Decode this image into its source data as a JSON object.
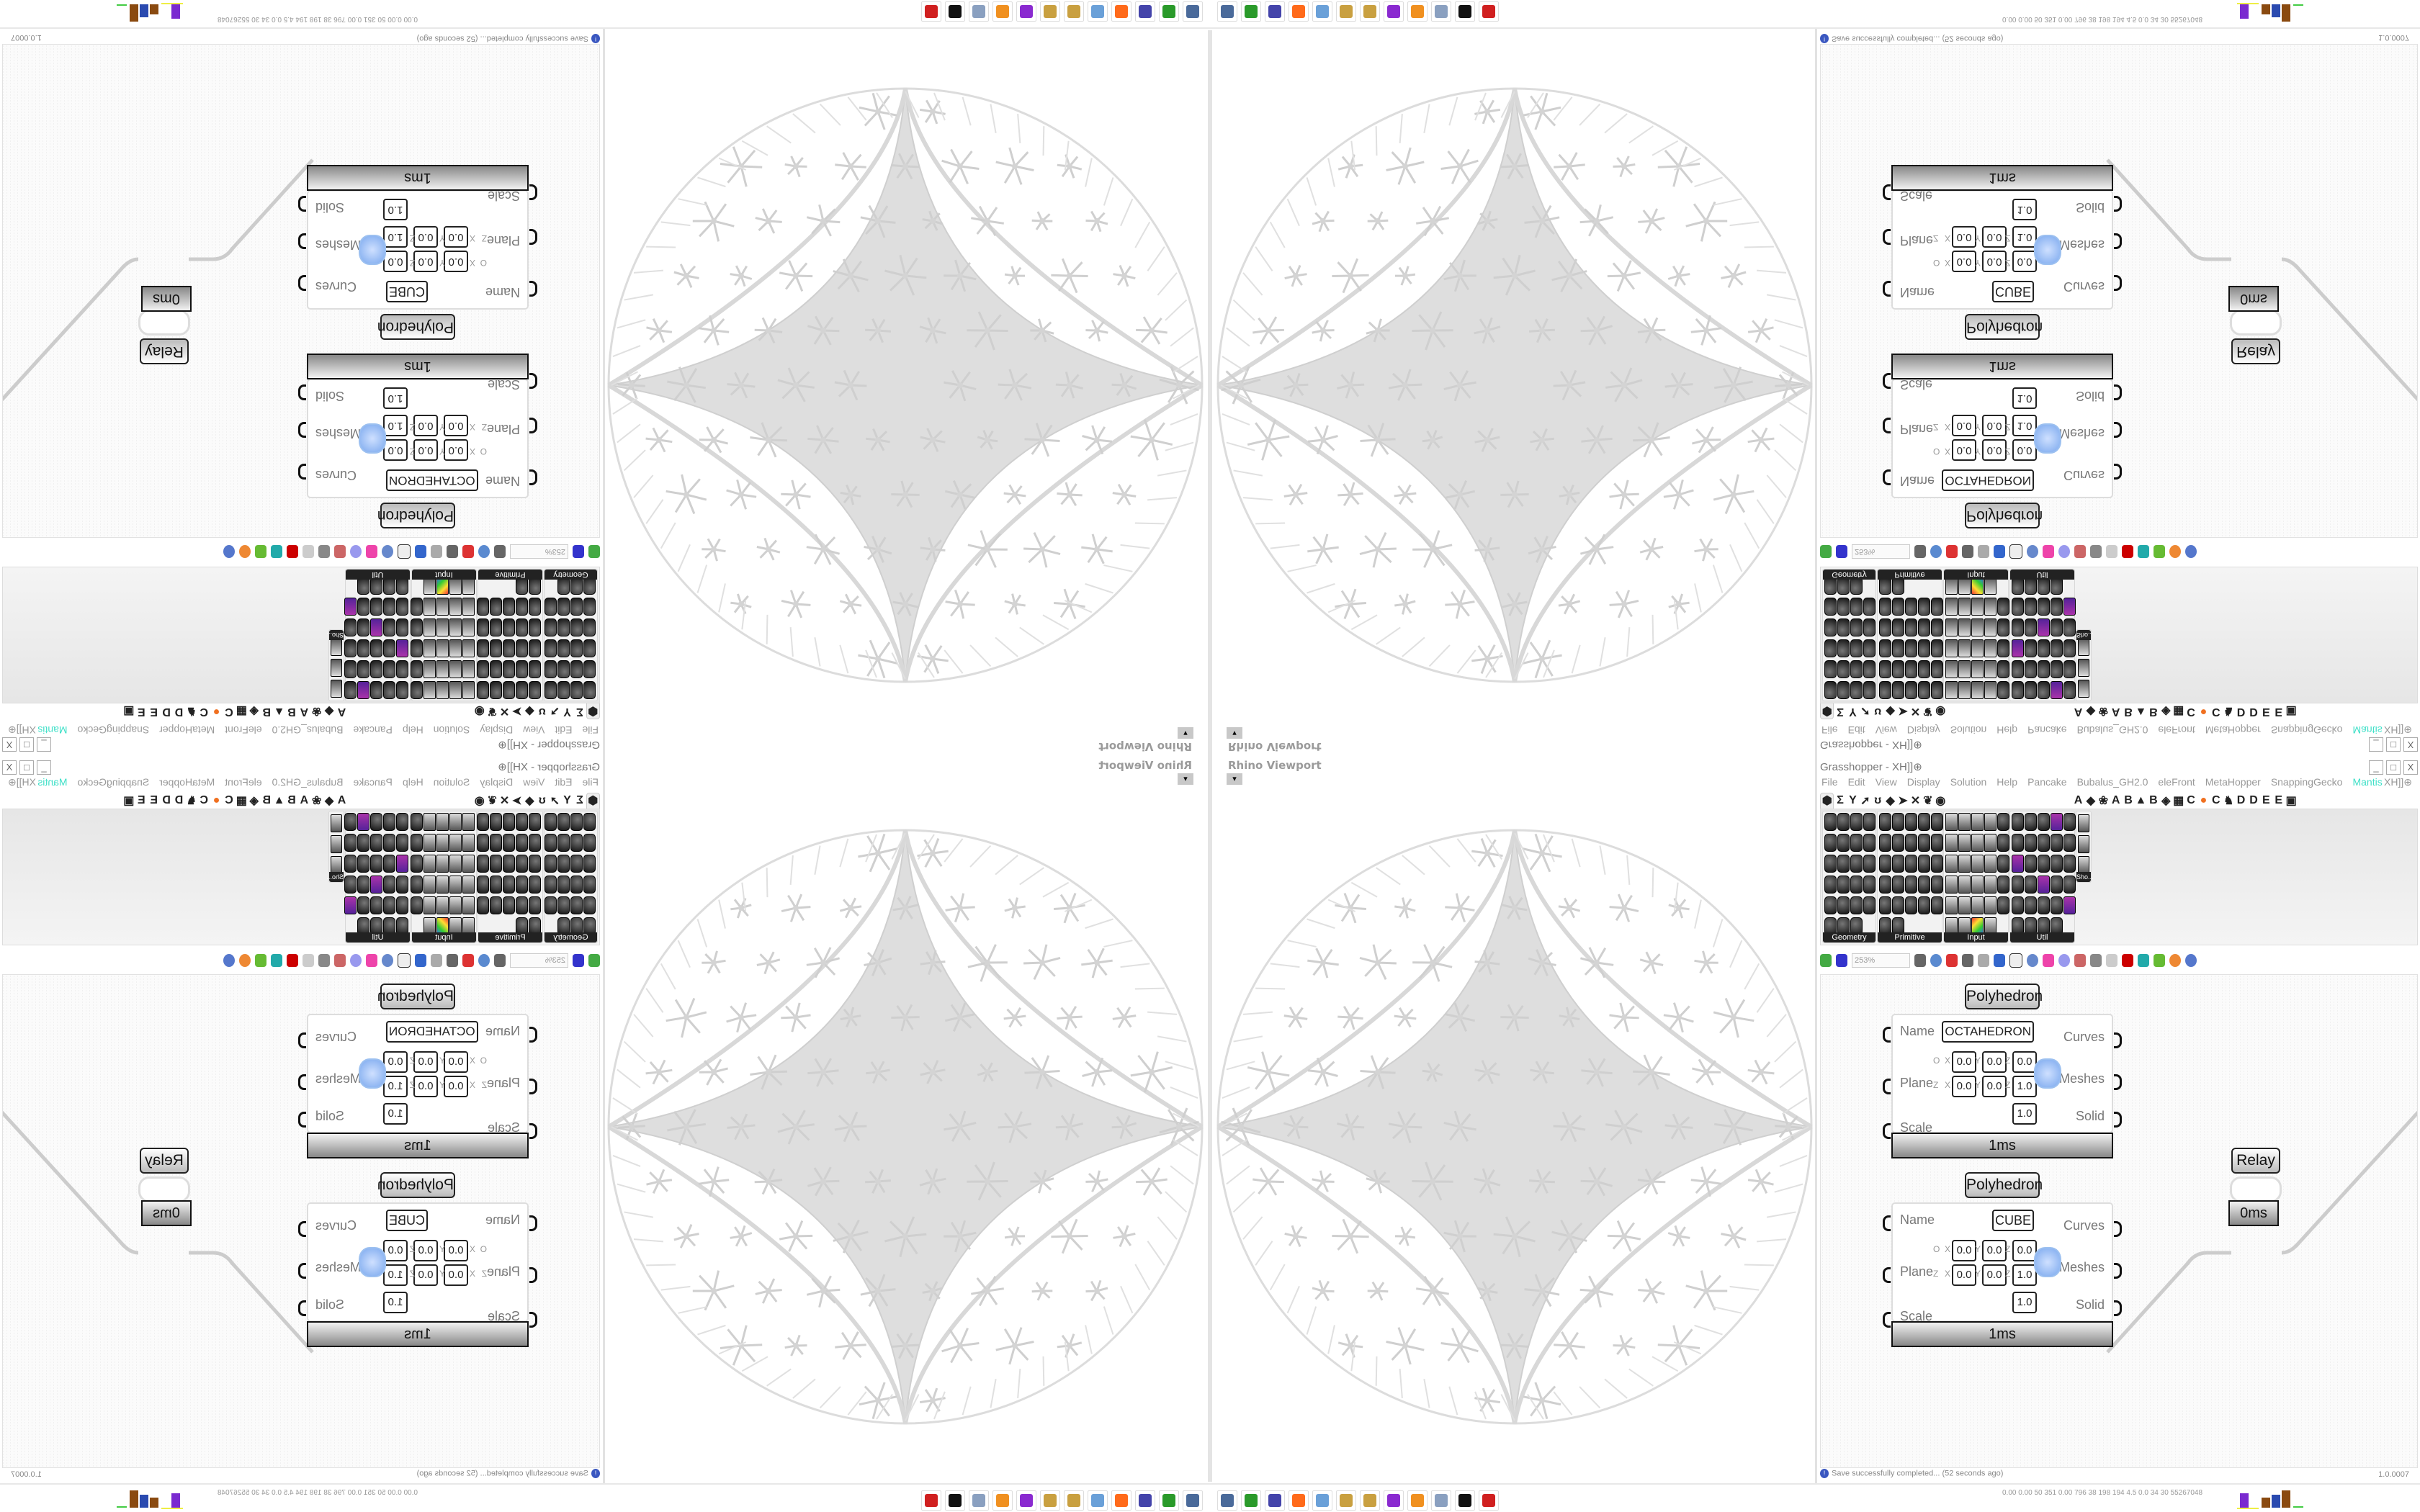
{
  "viewport": {
    "title": "Rhino Viewport",
    "dropdown_glyph": "▾"
  },
  "grasshopper": {
    "title": "Grasshopper - XH]]⊕",
    "window_buttons": [
      "_",
      "□",
      "X"
    ],
    "menu": [
      "File",
      "Edit",
      "View",
      "Display",
      "Solution",
      "Help",
      "Pancake",
      "Bubalus_GH2.0",
      "eleFront",
      "MetaHopper",
      "SnappingGecko",
      "Mantis"
    ],
    "menu_accent_color": "#3fe0c8",
    "menu_right": "XH]]⊕",
    "tabs": [
      "⬢",
      "Σ",
      "Y",
      "➚",
      "ʊ",
      "◆",
      "➤",
      "✕",
      "❦",
      "◉",
      "",
      "",
      "",
      "",
      "",
      "",
      "",
      "",
      "",
      "",
      "A",
      "◆",
      "❀",
      "A",
      "B",
      "▲",
      "B",
      "◈",
      "▦",
      "C",
      "●",
      "C",
      "♞",
      "D",
      "D",
      "E",
      "E",
      "▣"
    ],
    "palette_panels": [
      {
        "label": "Geometry",
        "cols": 4,
        "count": 23
      },
      {
        "label": "Primitive",
        "cols": 5,
        "count": 27
      },
      {
        "label": "Input",
        "cols": 5,
        "count": 29
      },
      {
        "label": "Util",
        "cols": 5,
        "count": 29
      }
    ],
    "sho_label": "Sho...",
    "canvas_zoom": "253%",
    "components": [
      {
        "title": "Polyhedron",
        "inputs": [
          "Name",
          "Plane",
          "Scale"
        ],
        "outputs": [
          "Curves",
          "Meshes",
          "Solid"
        ],
        "name_value": "OCTAHEDRON",
        "origin": {
          "x": "0.0",
          "y": "0.0",
          "z": "0.0"
        },
        "zaxis": {
          "x": "0.0",
          "y": "0.0",
          "z": "1.0"
        },
        "scale_value": "1.0",
        "time": "1ms"
      },
      {
        "title": "Polyhedron",
        "inputs": [
          "Name",
          "Plane",
          "Scale"
        ],
        "outputs": [
          "Curves",
          "Meshes",
          "Solid"
        ],
        "name_value": "CUBE",
        "origin": {
          "x": "0.0",
          "y": "0.0",
          "z": "0.0"
        },
        "zaxis": {
          "x": "0.0",
          "y": "0.0",
          "z": "1.0"
        },
        "scale_value": "1.0",
        "time": "1ms"
      }
    ],
    "plane_axis_labels": {
      "o": "O",
      "z": "Z",
      "x": "X",
      "y": "Y",
      "zz": "Z"
    },
    "relay": {
      "title": "Relay",
      "time": "0ms"
    },
    "status": {
      "message": "Save successfully completed... (52 seconds ago)",
      "version": "1.0.0007",
      "icon": "info-icon"
    }
  },
  "taskbar": {
    "icons": [
      "gpu-monitor-icon",
      "gpu-green-icon",
      "floppy-64-icon",
      "firefox-icon",
      "calculator-icon",
      "paint-icon",
      "paint-icon-2",
      "purple-app-icon",
      "blender-icon",
      "scroll-icon",
      "rhino-icon",
      "red-gear-icon"
    ],
    "icon_colors": [
      "#4a6a9a",
      "#2a9a2a",
      "#4444aa",
      "#ff6a1a",
      "#6aa0d8",
      "#c9a040",
      "#c9a040",
      "#8a2ad0",
      "#f09020",
      "#8aa0c0",
      "#111111",
      "#d02020"
    ],
    "tray_text": "0.00 0.00 50 351 0.00 796 38 198 194 4.5 0.0 34 30 55267048"
  }
}
